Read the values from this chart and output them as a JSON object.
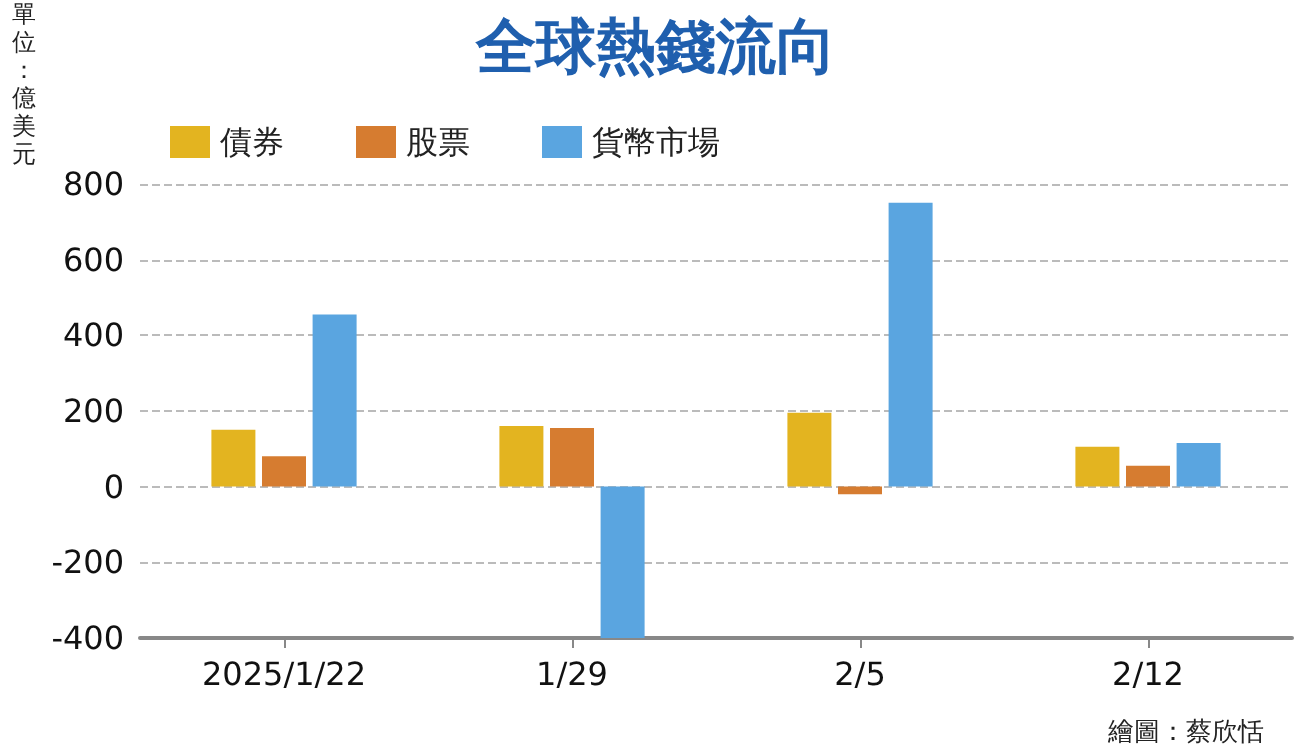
{
  "chart_data": {
    "type": "bar",
    "title": "全球熱錢流向",
    "ylabel": "單位：億美元",
    "categories": [
      "2025/1/22",
      "1/29",
      "2/5",
      "2/12"
    ],
    "series": [
      {
        "name": "債券",
        "color": "#e3b420",
        "values": [
          150,
          160,
          195,
          105
        ]
      },
      {
        "name": "股票",
        "color": "#d67c30",
        "values": [
          80,
          155,
          -20,
          55
        ]
      },
      {
        "name": "貨幣市場",
        "color": "#5aa5e0",
        "values": [
          455,
          -400,
          750,
          115
        ]
      }
    ],
    "ylim": [
      -400,
      800
    ],
    "yticks": [
      -400,
      -200,
      0,
      200,
      400,
      600,
      800
    ],
    "grid": "y",
    "legend": "top left",
    "annotations": [
      "繪圖：蔡欣恬"
    ]
  }
}
